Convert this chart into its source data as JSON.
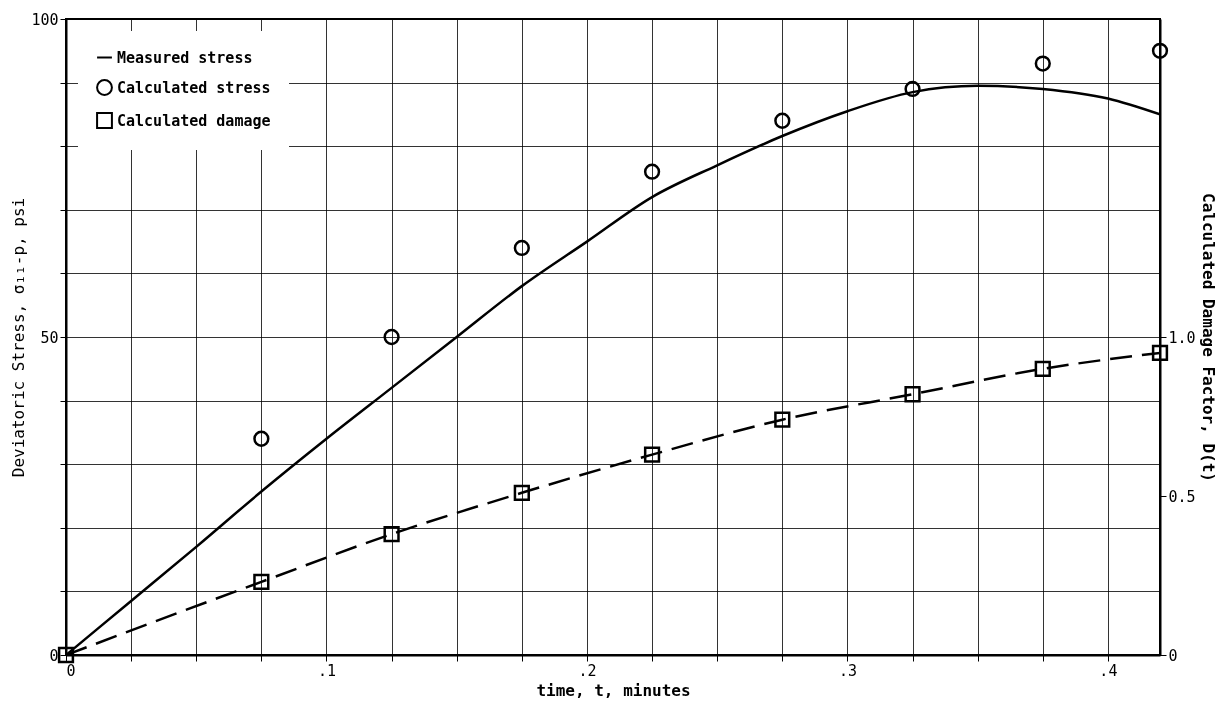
{
  "chart_data": {
    "type": "line",
    "xlabel": "time, t, minutes",
    "ylabel": "Deviatoric Stress, σ₁₁-p, psi",
    "y2label": "Calculated Damage Factor, D(t)",
    "xlim": [
      0,
      0.42
    ],
    "xticks": [
      0,
      {
        "value": 0.025,
        "label": null
      },
      {
        "value": 0.05,
        "label": null
      },
      {
        "value": 0.075,
        "label": null
      },
      {
        "value": 0.1,
        "label": ".1"
      },
      {
        "value": 0.125,
        "label": null
      },
      {
        "value": 0.15,
        "label": null
      },
      {
        "value": 0.175,
        "label": null
      },
      {
        "value": 0.2,
        "label": ".2"
      },
      {
        "value": 0.225,
        "label": null
      },
      {
        "value": 0.25,
        "label": null
      },
      {
        "value": 0.275,
        "label": null
      },
      {
        "value": 0.3,
        "label": ".3"
      },
      {
        "value": 0.325,
        "label": null
      },
      {
        "value": 0.35,
        "label": null
      },
      {
        "value": 0.375,
        "label": null
      },
      {
        "value": 0.4,
        "label": ".4"
      }
    ],
    "ylim": [
      0,
      100
    ],
    "yticks": [
      0,
      {
        "value": 10,
        "label": null
      },
      {
        "value": 20,
        "label": null
      },
      {
        "value": 30,
        "label": null
      },
      {
        "value": 40,
        "label": null
      },
      50,
      {
        "value": 60,
        "label": null
      },
      {
        "value": 70,
        "label": null
      },
      {
        "value": 80,
        "label": null
      },
      {
        "value": 90,
        "label": null
      },
      100
    ],
    "y2lim": [
      0,
      2
    ],
    "y2ticks": [
      0,
      0.5,
      {
        "value": 1,
        "label": "1.0"
      }
    ],
    "grid": true,
    "legend": "top left",
    "series": [
      {
        "name": "Measured stress",
        "marker": "none",
        "line_style": "solid",
        "color": "#000000",
        "x": [
          0,
          0.025,
          0.05,
          0.075,
          0.1,
          0.125,
          0.15,
          0.175,
          0.2,
          0.225,
          0.25,
          0.275,
          0.3,
          0.325,
          0.35,
          0.375,
          0.4,
          0.42
        ],
        "values": [
          0,
          8.5,
          17,
          25.7,
          34,
          42,
          50,
          58,
          65,
          72,
          77,
          81.6,
          85.5,
          88.5,
          89.5,
          89,
          87.5,
          85
        ]
      },
      {
        "name": "Calculated stress",
        "type": "scatter",
        "marker": "circle",
        "color": "#000000",
        "x": [
          0.075,
          0.125,
          0.175,
          0.225,
          0.275,
          0.325,
          0.375,
          0.42
        ],
        "values": [
          34,
          50,
          64,
          76,
          84,
          89,
          93,
          95
        ]
      },
      {
        "name": "Calculated damage",
        "marker": "square",
        "line_style": "dashed",
        "axis": "y2",
        "color": "#000000",
        "x": [
          0,
          0.075,
          0.125,
          0.175,
          0.225,
          0.275,
          0.325,
          0.375,
          0.42
        ],
        "values": [
          0,
          0.23,
          0.38,
          0.51,
          0.63,
          0.74,
          0.82,
          0.9,
          0.95
        ]
      }
    ]
  }
}
